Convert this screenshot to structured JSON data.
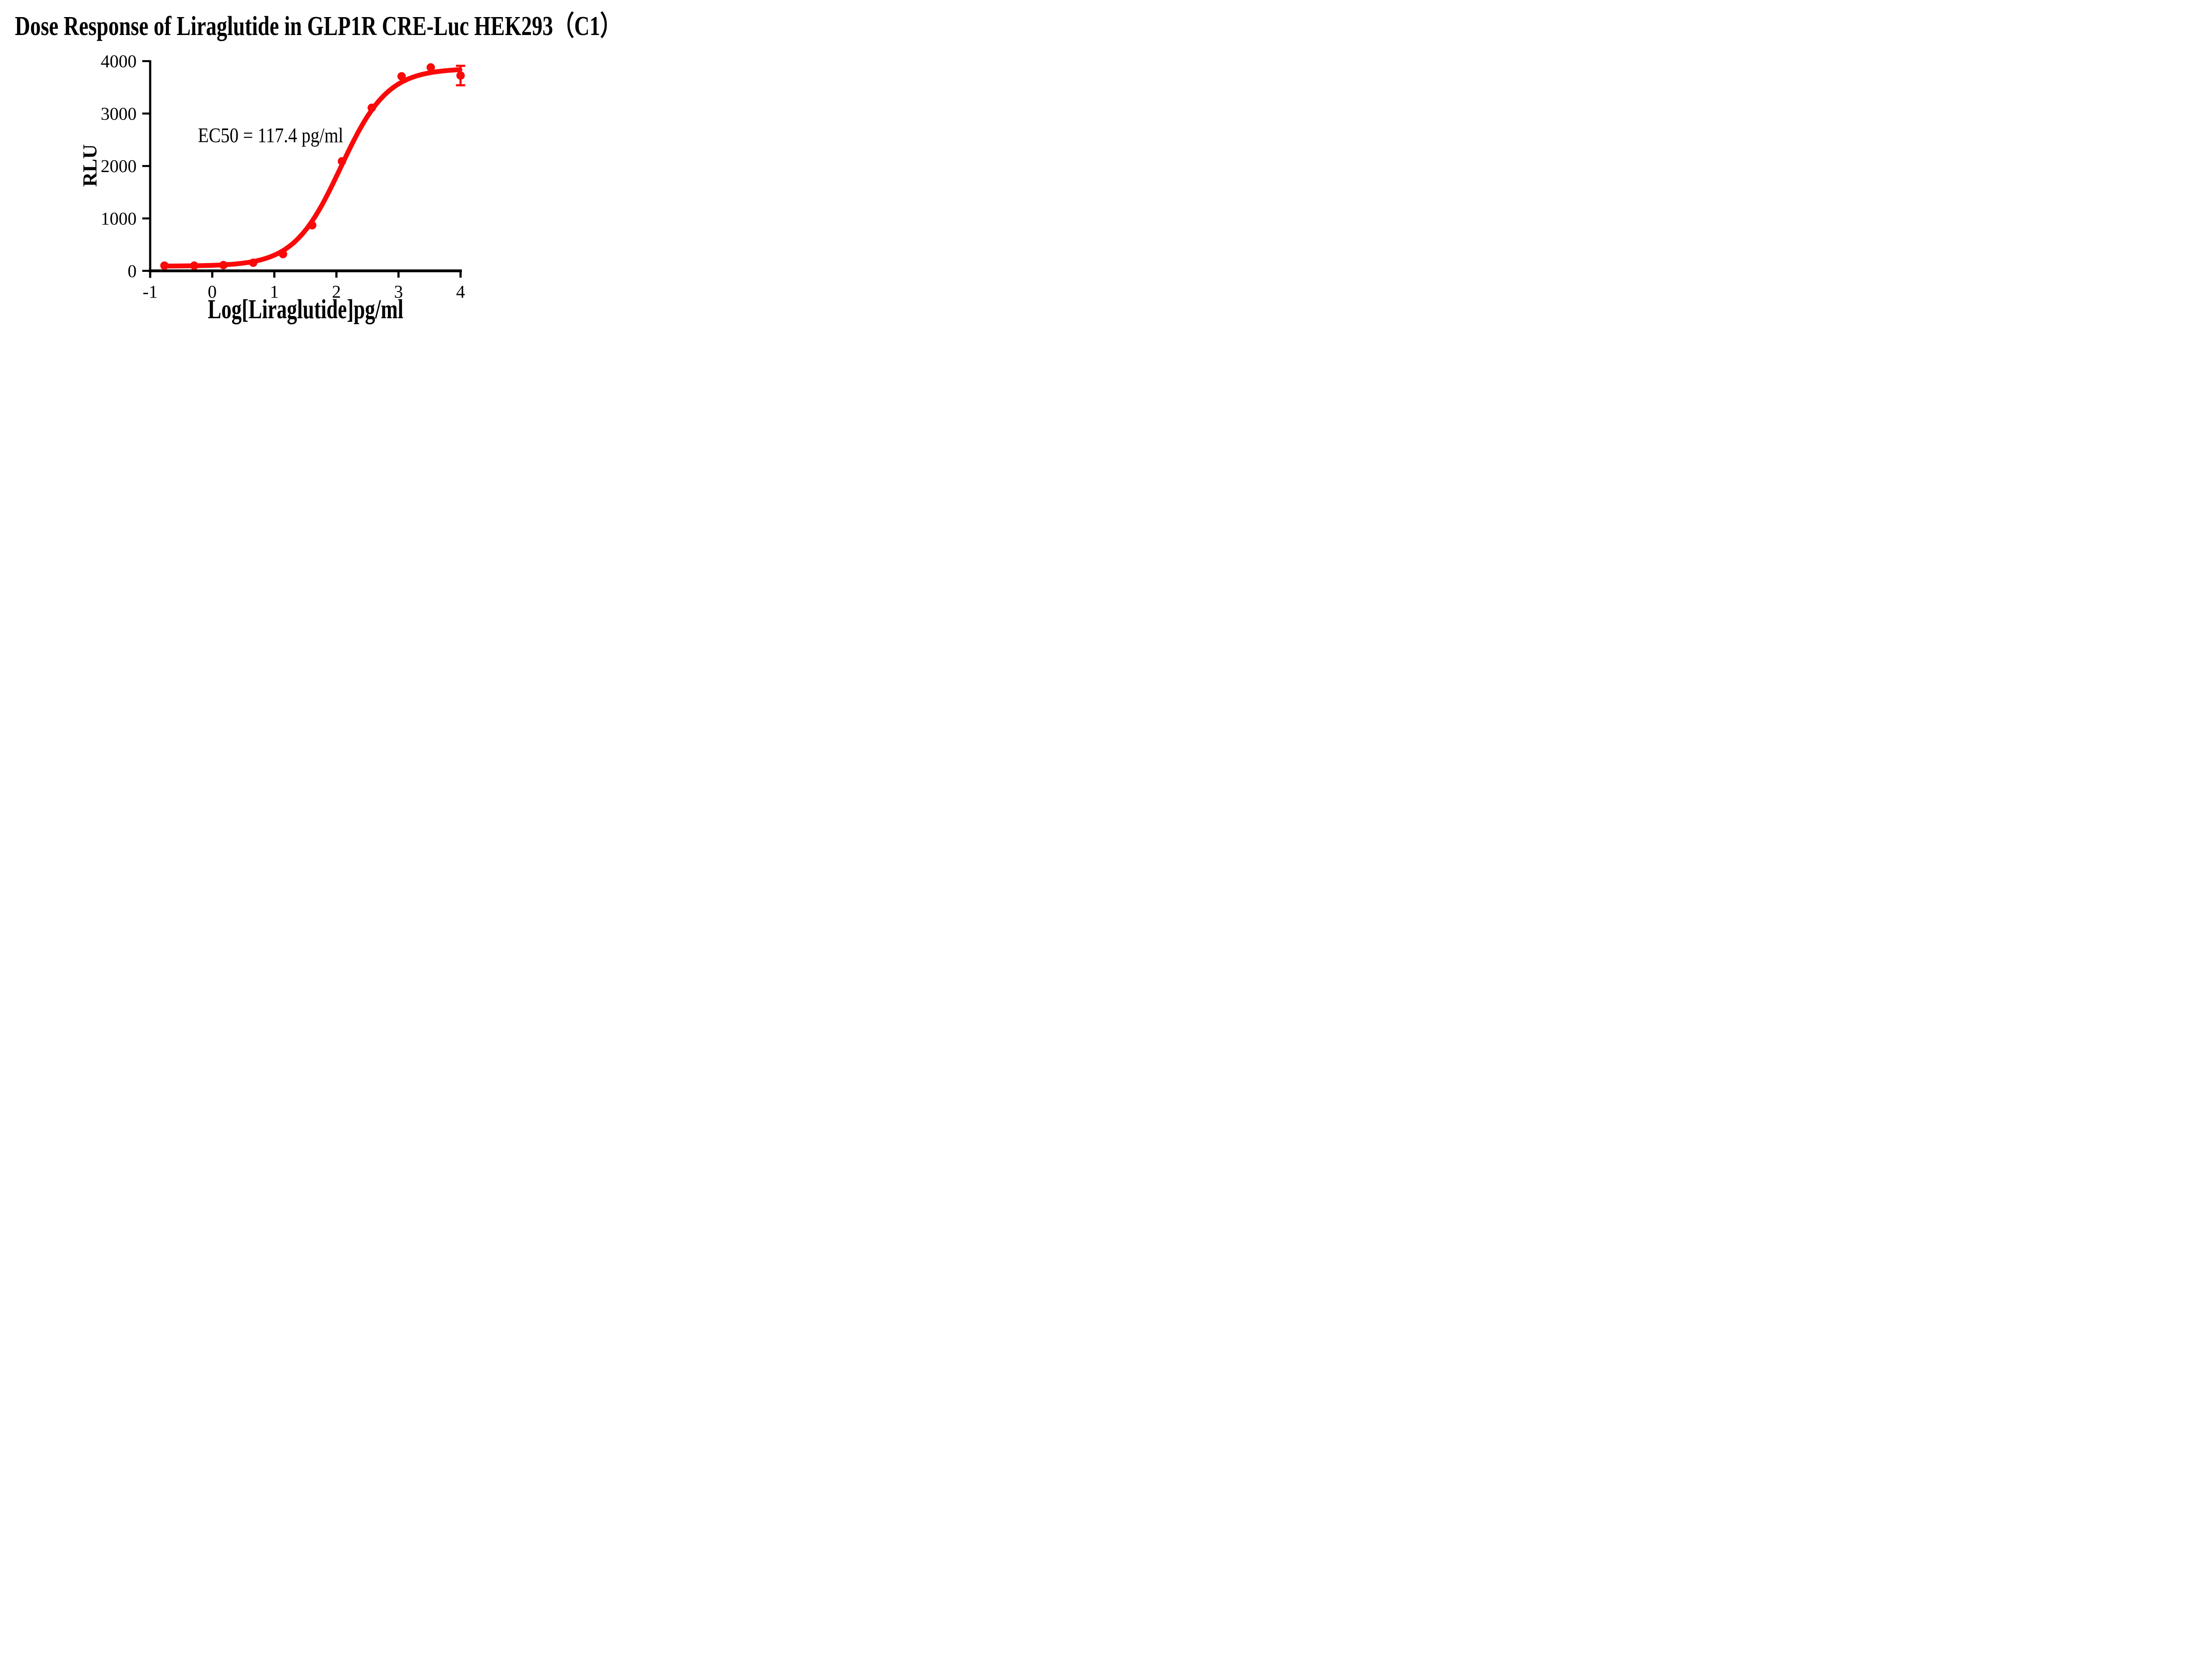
{
  "title": "Dose Response of Liraglutide in GLP1R CRE-Luc HEK293（C1）",
  "ec50_annotation": "EC50 = 117.4 pg/ml",
  "colors": {
    "series": "#fa0909",
    "axis": "#000000",
    "text": "#000000",
    "background": "#ffffff"
  },
  "chart_data": {
    "type": "scatter",
    "title": "Dose Response of Liraglutide in GLP1R CRE-Luc HEK293（C1）",
    "xlabel": "Log[Liraglutide]pg/ml",
    "ylabel": "RLU",
    "xlim": [
      -1,
      4
    ],
    "ylim": [
      0,
      4000
    ],
    "x_ticks": [
      -1,
      0,
      1,
      2,
      3,
      4
    ],
    "y_ticks": [
      0,
      1000,
      2000,
      3000,
      4000
    ],
    "grid": false,
    "legend_position": "none",
    "series": [
      {
        "name": "Liraglutide",
        "marker": "circle",
        "color": "#fa0909",
        "x": [
          -0.77,
          -0.29,
          0.18,
          0.66,
          1.14,
          1.61,
          2.09,
          2.57,
          3.05,
          3.52,
          4.0
        ],
        "y": [
          100,
          100,
          110,
          155,
          320,
          870,
          2090,
          3110,
          3710,
          3880,
          3725
        ],
        "error_y": [
          null,
          null,
          null,
          null,
          null,
          null,
          null,
          null,
          null,
          null,
          185
        ]
      }
    ],
    "fit_curve": {
      "model": "4PL-sigmoid",
      "bottom": 90,
      "top": 3860,
      "log_ec50": 2.07,
      "hill": 1.15,
      "x_start": -0.77,
      "x_end": 4.0
    },
    "annotation": {
      "text": "EC50 = 117.4 pg/ml",
      "ec50_pg_ml": 117.4
    }
  }
}
